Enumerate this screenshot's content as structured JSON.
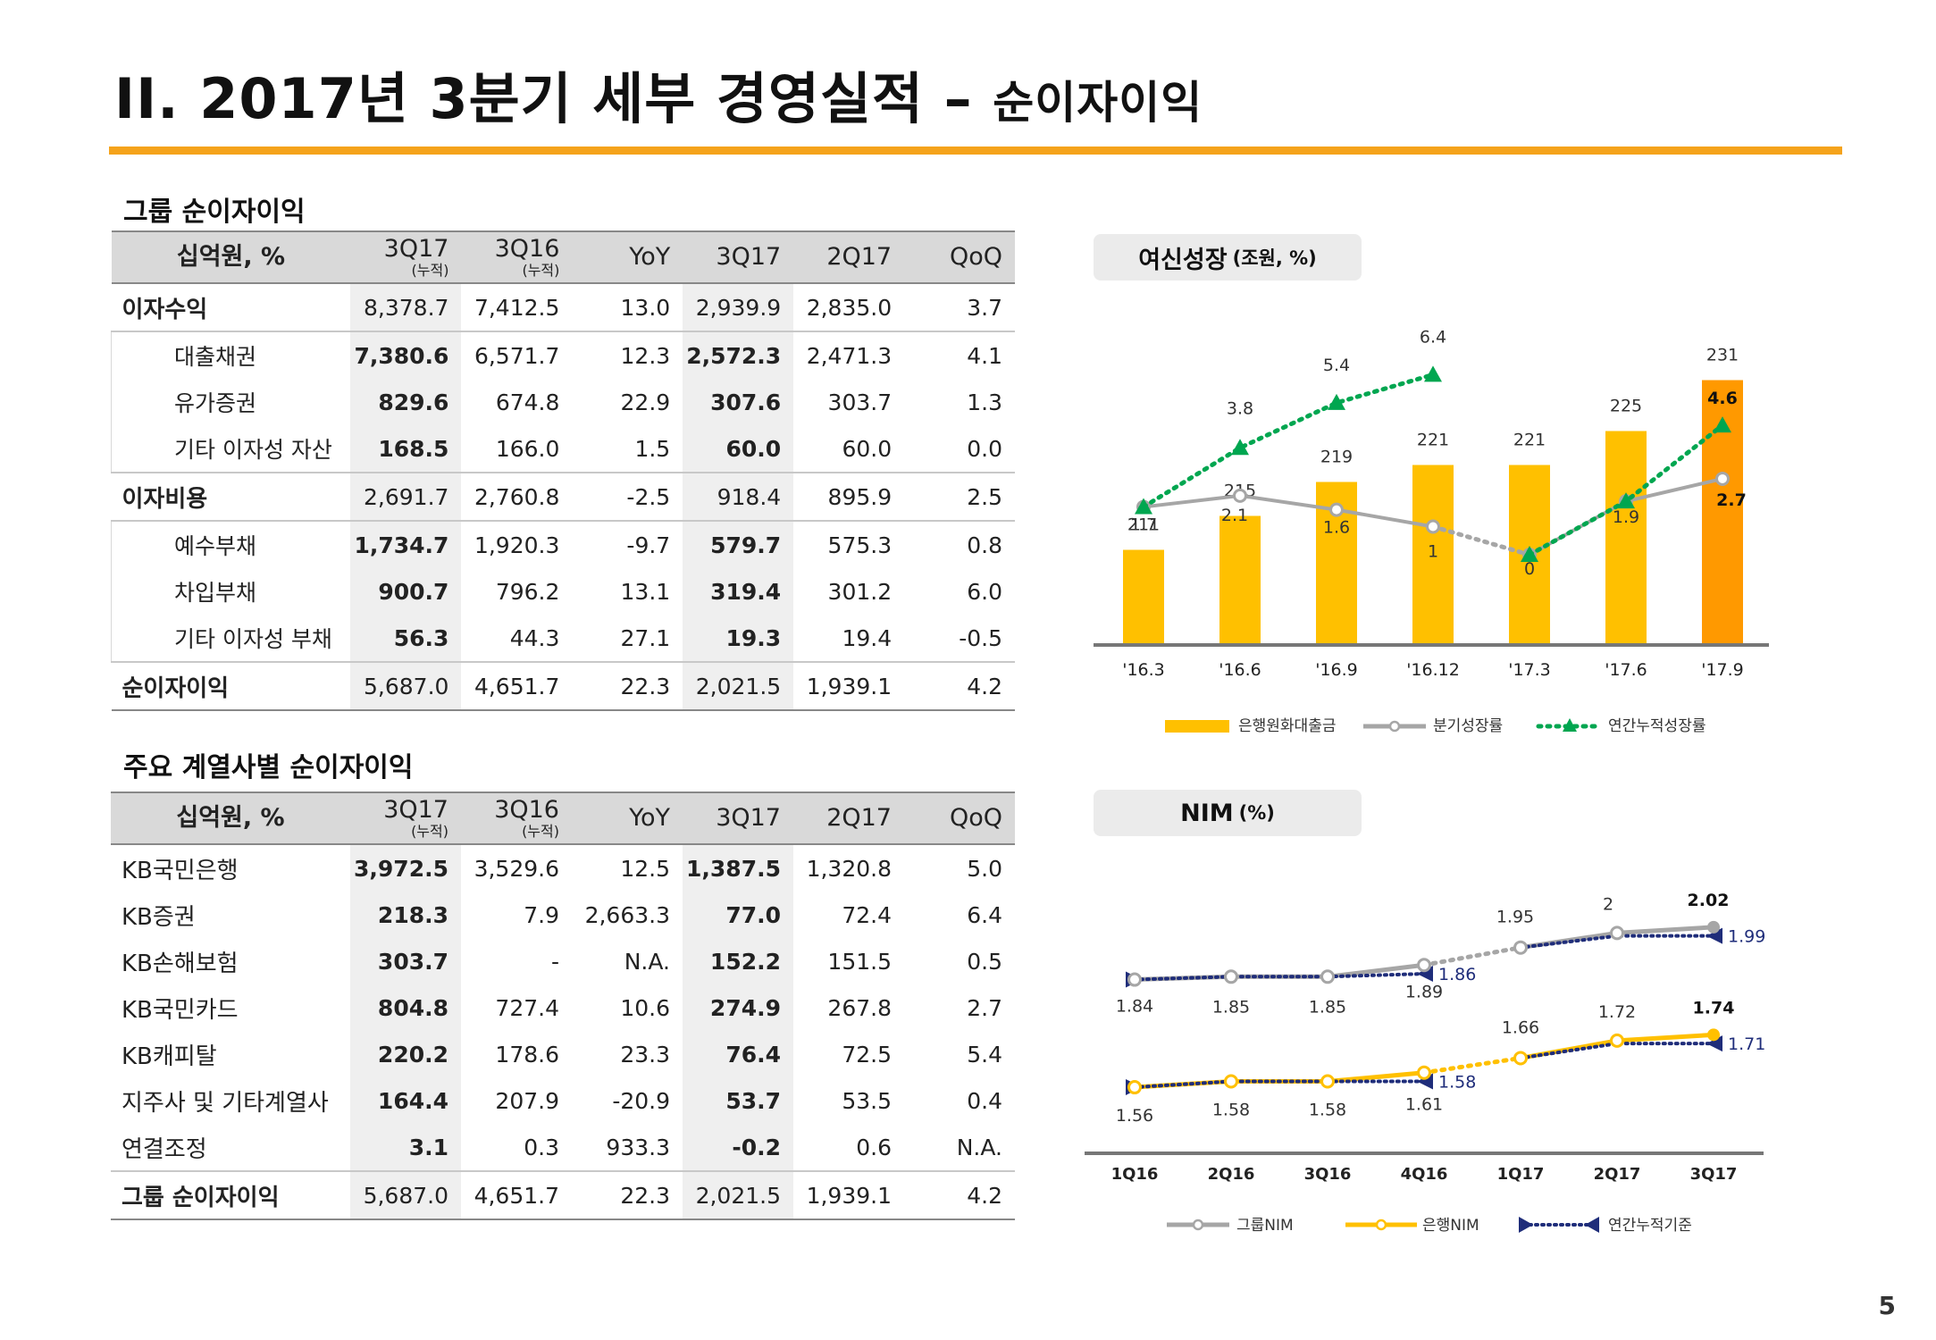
{
  "page": {
    "title_main": "II. 2017년 3분기 세부 경영실적",
    "title_sep": " – ",
    "title_sub": "순이자이익",
    "page_number": "5"
  },
  "table1": {
    "title": "그룹 순이자이익",
    "headers": [
      {
        "line1": "십억원, %",
        "line2": ""
      },
      {
        "line1": "3Q17",
        "line2": "(누적)"
      },
      {
        "line1": "3Q16",
        "line2": "(누적)"
      },
      {
        "line1": "YoY",
        "line2": ""
      },
      {
        "line1": "3Q17",
        "line2": ""
      },
      {
        "line1": "2Q17",
        "line2": ""
      },
      {
        "line1": "QoQ",
        "line2": ""
      }
    ],
    "rows": [
      {
        "label": "이자수익",
        "cells": [
          "8,378.7",
          "7,412.5",
          "13.0",
          "2,939.9",
          "2,835.0",
          "3.7"
        ]
      },
      {
        "label": "대출채권",
        "cells": [
          "7,380.6",
          "6,571.7",
          "12.3",
          "2,572.3",
          "2,471.3",
          "4.1"
        ]
      },
      {
        "label": "유가증권",
        "cells": [
          "829.6",
          "674.8",
          "22.9",
          "307.6",
          "303.7",
          "1.3"
        ]
      },
      {
        "label": "기타 이자성 자산",
        "cells": [
          "168.5",
          "166.0",
          "1.5",
          "60.0",
          "60.0",
          "0.0"
        ]
      },
      {
        "label": "이자비용",
        "cells": [
          "2,691.7",
          "2,760.8",
          "-2.5",
          "918.4",
          "895.9",
          "2.5"
        ]
      },
      {
        "label": "예수부채",
        "cells": [
          "1,734.7",
          "1,920.3",
          "-9.7",
          "579.7",
          "575.3",
          "0.8"
        ]
      },
      {
        "label": "차입부채",
        "cells": [
          "900.7",
          "796.2",
          "13.1",
          "319.4",
          "301.2",
          "6.0"
        ]
      },
      {
        "label": "기타 이자성 부채",
        "cells": [
          "56.3",
          "44.3",
          "27.1",
          "19.3",
          "19.4",
          "-0.5"
        ]
      },
      {
        "label": "순이자이익",
        "cells": [
          "5,687.0",
          "4,651.7",
          "22.3",
          "2,021.5",
          "1,939.1",
          "4.2"
        ]
      }
    ]
  },
  "table2": {
    "title": "주요 계열사별 순이자이익",
    "rows": [
      {
        "label": "KB국민은행",
        "cells": [
          "3,972.5",
          "3,529.6",
          "12.5",
          "1,387.5",
          "1,320.8",
          "5.0"
        ]
      },
      {
        "label": "KB증권",
        "cells": [
          "218.3",
          "7.9",
          "2,663.3",
          "77.0",
          "72.4",
          "6.4"
        ]
      },
      {
        "label": "KB손해보험",
        "cells": [
          "303.7",
          "-",
          "N.A.",
          "152.2",
          "151.5",
          "0.5"
        ]
      },
      {
        "label": "KB국민카드",
        "cells": [
          "804.8",
          "727.4",
          "10.6",
          "274.9",
          "267.8",
          "2.7"
        ]
      },
      {
        "label": "KB캐피탈",
        "cells": [
          "220.2",
          "178.6",
          "23.3",
          "76.4",
          "72.5",
          "5.4"
        ]
      },
      {
        "label": "지주사 및 기타계열사",
        "cells": [
          "164.4",
          "207.9",
          "-20.9",
          "53.7",
          "53.5",
          "0.4"
        ]
      },
      {
        "label": "연결조정",
        "cells": [
          "3.1",
          "0.3",
          "933.3",
          "-0.2",
          "0.6",
          "N.A."
        ]
      },
      {
        "label": "그룹 순이자이익",
        "cells": [
          "5,687.0",
          "4,651.7",
          "22.3",
          "2,021.5",
          "1,939.1",
          "4.2"
        ]
      }
    ]
  },
  "chart_data": [
    {
      "type": "bar",
      "title": "여신성장",
      "title_unit": "(조원, %)",
      "categories": [
        "'16.3",
        "'16.6",
        "'16.9",
        "'16.12",
        "'17.3",
        "'17.6",
        "'17.9"
      ],
      "series": [
        {
          "name": "은행원화대출금",
          "type": "bar",
          "values": [
            211,
            215,
            219,
            221,
            221,
            225,
            231
          ],
          "color": "#FFC000",
          "last_color": "#FF9900"
        },
        {
          "name": "분기성장률",
          "type": "line",
          "values": [
            1.7,
            2.1,
            1.6,
            1.0,
            0.0,
            1.9,
            2.7
          ],
          "color": "#A6A6A6"
        },
        {
          "name": "연간누적성장률",
          "type": "line",
          "values": [
            1.7,
            3.8,
            5.4,
            6.4,
            0.0,
            1.9,
            4.6
          ],
          "color": "#00A650"
        }
      ]
    },
    {
      "type": "line",
      "title": "NIM",
      "title_unit": "(%)",
      "categories": [
        "1Q16",
        "2Q16",
        "3Q16",
        "4Q16",
        "1Q17",
        "2Q17",
        "3Q17"
      ],
      "series": [
        {
          "name": "그룹NIM",
          "values": [
            1.84,
            1.85,
            1.85,
            1.89,
            1.95,
            2.0,
            2.02
          ],
          "color": "#A6A6A6"
        },
        {
          "name": "은행NIM",
          "values": [
            1.56,
            1.58,
            1.58,
            1.61,
            1.66,
            1.72,
            1.74
          ],
          "color": "#FFC000"
        },
        {
          "name": "연간누적기준",
          "values_group": [
            1.84,
            1.85,
            1.85,
            1.86,
            1.95,
            1.99,
            1.99
          ],
          "values_bank": [
            1.56,
            1.58,
            1.58,
            1.58,
            1.66,
            1.71,
            1.71
          ],
          "color": "#1F2D7A"
        }
      ]
    }
  ]
}
